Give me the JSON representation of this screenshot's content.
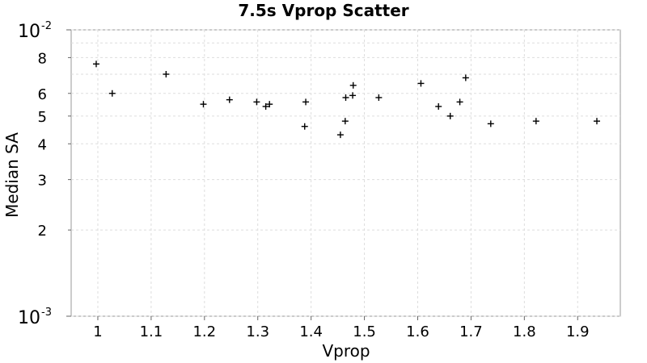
{
  "chart_data": {
    "type": "scatter",
    "title": "7.5s Vprop Scatter",
    "xlabel": "Vprop",
    "ylabel": "Median SA",
    "xlim": [
      0.95,
      1.98
    ],
    "ylim": [
      0.001,
      0.01
    ],
    "y_scale": "log",
    "grid": true,
    "marker": "+",
    "x_ticks": [
      {
        "value": 1.0,
        "label": "1"
      },
      {
        "value": 1.1,
        "label": "1.1"
      },
      {
        "value": 1.2,
        "label": "1.2"
      },
      {
        "value": 1.3,
        "label": "1.3"
      },
      {
        "value": 1.4,
        "label": "1.4"
      },
      {
        "value": 1.5,
        "label": "1.5"
      },
      {
        "value": 1.6,
        "label": "1.6"
      },
      {
        "value": 1.7,
        "label": "1.7"
      },
      {
        "value": 1.8,
        "label": "1.8"
      },
      {
        "value": 1.9,
        "label": "1.9"
      }
    ],
    "y_ticks_major": [
      {
        "value": 0.001,
        "base": "10",
        "exp": "-3"
      },
      {
        "value": 0.01,
        "base": "10",
        "exp": "-2"
      }
    ],
    "y_ticks_minor": [
      {
        "value": 0.002,
        "label": "2"
      },
      {
        "value": 0.003,
        "label": "3"
      },
      {
        "value": 0.004,
        "label": "4"
      },
      {
        "value": 0.005,
        "label": "5"
      },
      {
        "value": 0.006,
        "label": "6"
      },
      {
        "value": 0.008,
        "label": "8"
      }
    ],
    "y_grid_values": [
      0.001,
      0.002,
      0.003,
      0.004,
      0.005,
      0.006,
      0.007,
      0.008,
      0.009,
      0.01
    ],
    "points": [
      {
        "x": 0.997,
        "y": 0.0076
      },
      {
        "x": 1.027,
        "y": 0.006
      },
      {
        "x": 1.128,
        "y": 0.007
      },
      {
        "x": 1.198,
        "y": 0.0055
      },
      {
        "x": 1.247,
        "y": 0.0057
      },
      {
        "x": 1.298,
        "y": 0.0056
      },
      {
        "x": 1.315,
        "y": 0.0054
      },
      {
        "x": 1.322,
        "y": 0.0055
      },
      {
        "x": 1.388,
        "y": 0.0046
      },
      {
        "x": 1.39,
        "y": 0.0056
      },
      {
        "x": 1.455,
        "y": 0.0043
      },
      {
        "x": 1.464,
        "y": 0.0048
      },
      {
        "x": 1.465,
        "y": 0.0058
      },
      {
        "x": 1.478,
        "y": 0.0059
      },
      {
        "x": 1.479,
        "y": 0.0064
      },
      {
        "x": 1.527,
        "y": 0.0058
      },
      {
        "x": 1.606,
        "y": 0.0065
      },
      {
        "x": 1.639,
        "y": 0.0054
      },
      {
        "x": 1.661,
        "y": 0.005
      },
      {
        "x": 1.679,
        "y": 0.0056
      },
      {
        "x": 1.69,
        "y": 0.0068
      },
      {
        "x": 1.737,
        "y": 0.0047
      },
      {
        "x": 1.822,
        "y": 0.0048
      },
      {
        "x": 1.936,
        "y": 0.0048
      }
    ]
  }
}
